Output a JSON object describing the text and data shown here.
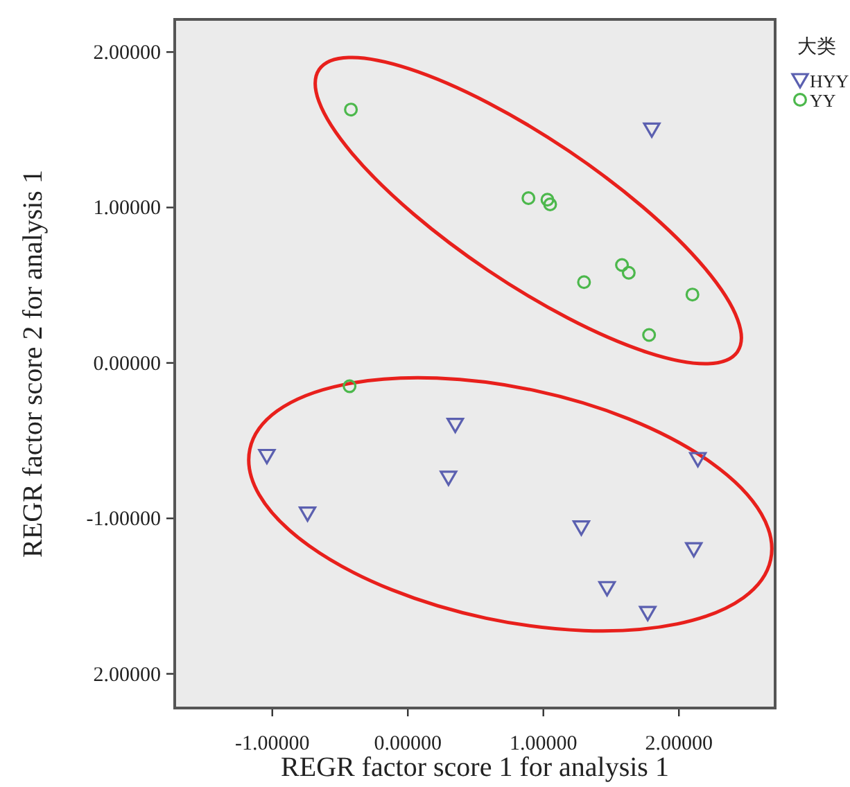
{
  "chart_data": {
    "type": "scatter",
    "xlabel": "REGR factor score 1 for analysis 1",
    "ylabel": "REGR factor score 2 for analysis 1",
    "legend_title": "大类",
    "legend": "top right",
    "xlim": [
      -1.72,
      2.71
    ],
    "ylim": [
      -2.22,
      2.21
    ],
    "xticks": [
      {
        "value": -1,
        "label": "-1.00000"
      },
      {
        "value": 0,
        "label": "0.00000"
      },
      {
        "value": 1,
        "label": "1.00000"
      },
      {
        "value": 2,
        "label": "2.00000"
      }
    ],
    "yticks": [
      {
        "value": -2,
        "label": "2.00000"
      },
      {
        "value": -1,
        "label": "-1.00000"
      },
      {
        "value": 0,
        "label": "0.00000"
      },
      {
        "value": 1,
        "label": "1.00000"
      },
      {
        "value": 2,
        "label": "2.00000"
      }
    ],
    "series": [
      {
        "name": "HYY",
        "color": "#5b60b0",
        "marker": "triangle",
        "x": [
          1.8,
          -1.04,
          0.35,
          -0.74,
          0.3,
          1.28,
          2.14,
          2.11,
          1.47,
          1.77
        ],
        "values": [
          1.5,
          -0.6,
          -0.4,
          -0.97,
          -0.74,
          -1.06,
          -0.62,
          -1.2,
          -1.45,
          -1.61
        ]
      },
      {
        "name": "YY",
        "color": "#4cb84c",
        "marker": "circle",
        "x": [
          -0.42,
          0.89,
          1.03,
          1.05,
          1.3,
          1.58,
          1.63,
          2.1,
          1.78,
          -0.43
        ],
        "values": [
          1.63,
          1.06,
          1.05,
          1.02,
          0.52,
          0.63,
          0.58,
          0.44,
          0.18,
          -0.15
        ]
      }
    ]
  }
}
